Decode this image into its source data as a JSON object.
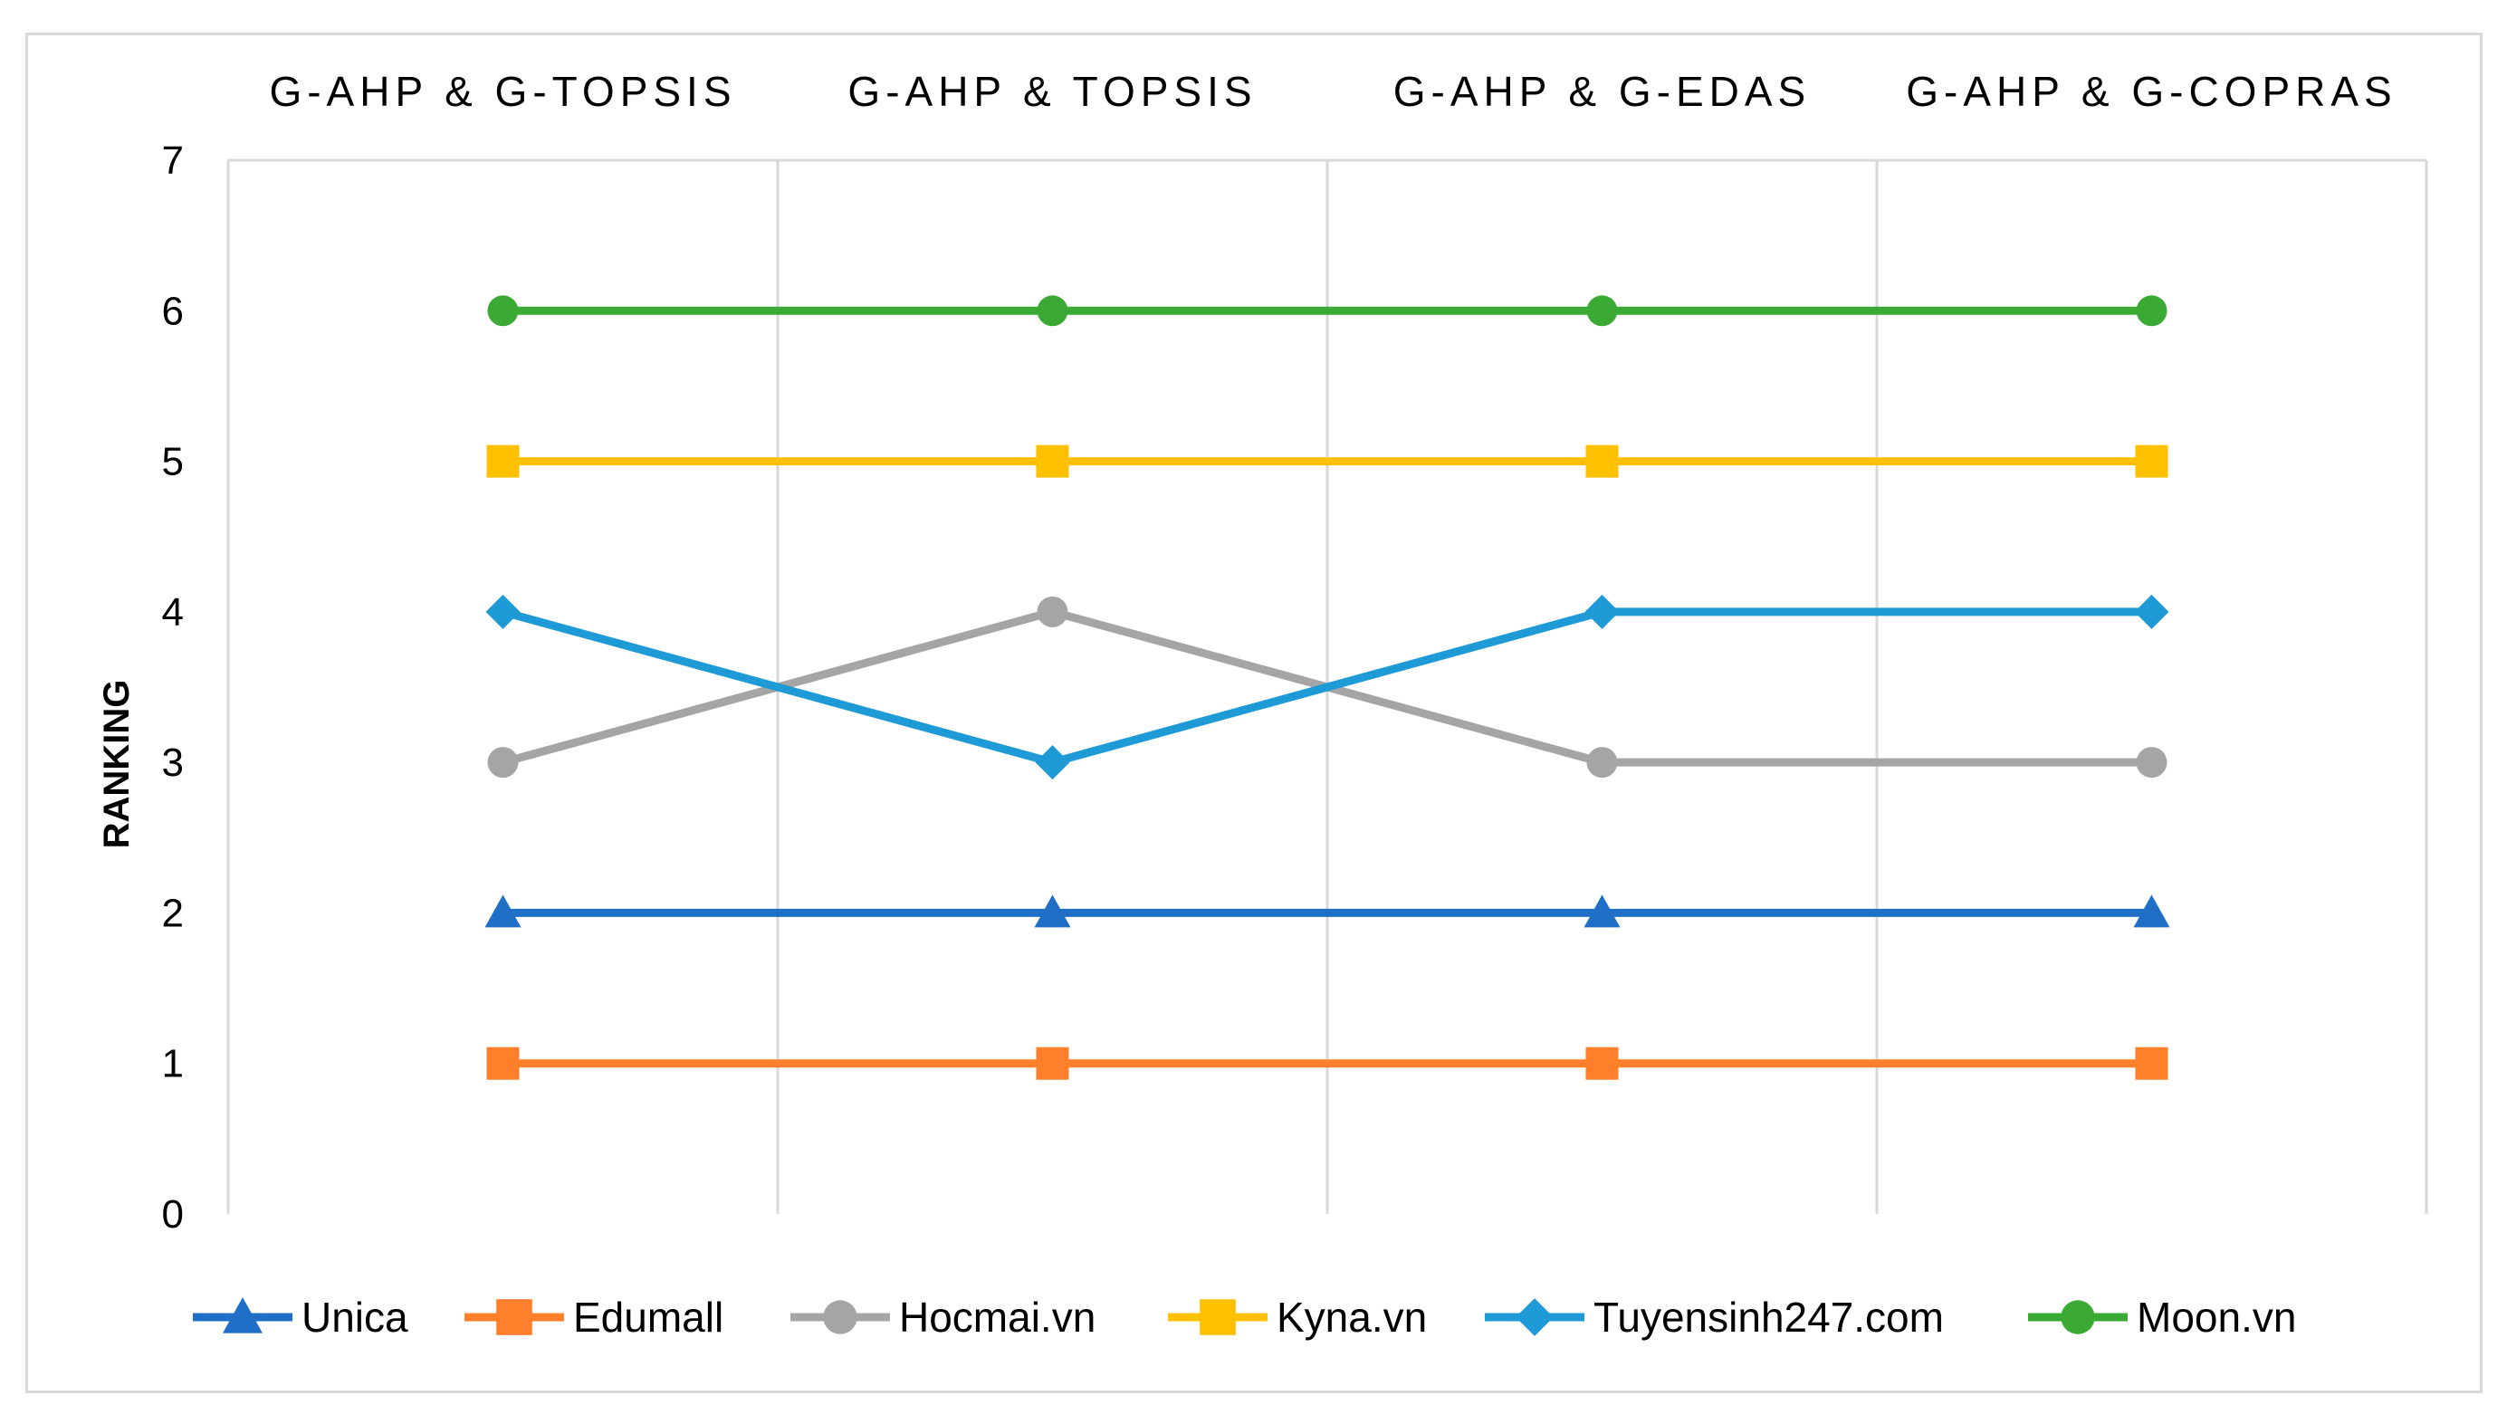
{
  "chart_data": {
    "type": "line",
    "categories": [
      "G-AHP & G-TOPSIS",
      "G-AHP & TOPSIS",
      "G-AHP & G-EDAS",
      "G-AHP & G-COPRAS"
    ],
    "ylabel": "RANKING",
    "ylim": [
      0,
      7
    ],
    "yticks": [
      0,
      1,
      2,
      3,
      4,
      5,
      6,
      7
    ],
    "category_label_position": "top",
    "grid": "vertical",
    "legend_position": "bottom",
    "series": [
      {
        "name": "Unica",
        "values": [
          2,
          2,
          2,
          2
        ],
        "color": "#1f6fc6",
        "marker": "triangle"
      },
      {
        "name": "Edumall",
        "values": [
          1,
          1,
          1,
          1
        ],
        "color": "#ff7f2a",
        "marker": "square"
      },
      {
        "name": "Hocmai.vn",
        "values": [
          3,
          4,
          3,
          3
        ],
        "color": "#a5a5a5",
        "marker": "circle"
      },
      {
        "name": "Kyna.vn",
        "values": [
          5,
          5,
          5,
          5
        ],
        "color": "#ffc000",
        "marker": "square"
      },
      {
        "name": "Tuyensinh247.com",
        "values": [
          4,
          3,
          4,
          4
        ],
        "color": "#1e9ad6",
        "marker": "diamond"
      },
      {
        "name": "Moon.vn",
        "values": [
          6,
          6,
          6,
          6
        ],
        "color": "#3aaa35",
        "marker": "circle"
      }
    ]
  }
}
